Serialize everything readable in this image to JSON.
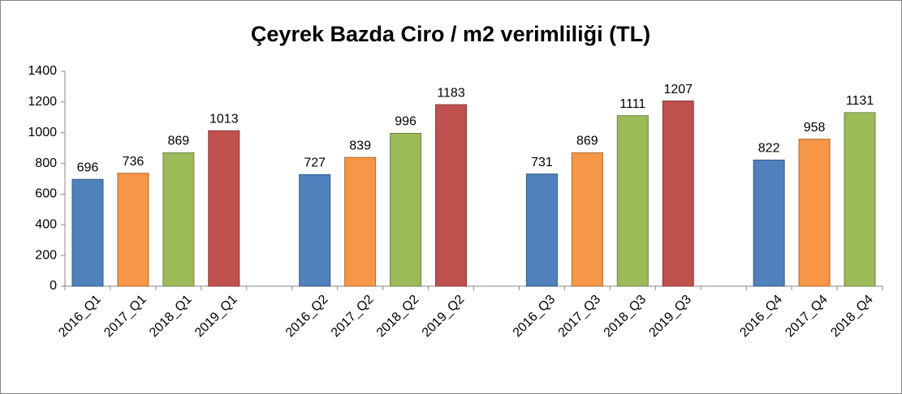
{
  "chart_data": {
    "type": "bar",
    "title": "Çeyrek Bazda Ciro / m2 verimliliği (TL)",
    "categories": [
      "2016_Q1",
      "2017_Q1",
      "2018_Q1",
      "2019_Q1",
      null,
      "2016_Q2",
      "2017_Q2",
      "2018_Q2",
      "2019_Q2",
      null,
      "2016_Q3",
      "2017_Q3",
      "2018_Q3",
      "2019_Q3",
      null,
      "2016_Q4",
      "2017_Q4",
      "2018_Q4"
    ],
    "values": [
      696,
      736,
      869,
      1013,
      null,
      727,
      839,
      996,
      1183,
      null,
      731,
      869,
      1111,
      1207,
      null,
      822,
      958,
      1131
    ],
    "colors": [
      "#4f81bd",
      "#f79646",
      "#9bbb59",
      "#c0504d",
      null,
      "#4f81bd",
      "#f79646",
      "#9bbb59",
      "#c0504d",
      null,
      "#4f81bd",
      "#f79646",
      "#9bbb59",
      "#c0504d",
      null,
      "#4f81bd",
      "#f79646",
      "#9bbb59"
    ],
    "ylim": [
      0,
      1400
    ],
    "yticks": [
      0,
      200,
      400,
      600,
      800,
      1000,
      1200,
      1400
    ],
    "grid": false
  }
}
